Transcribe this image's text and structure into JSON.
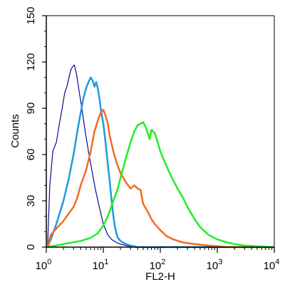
{
  "chart_data": {
    "type": "line",
    "title": "",
    "xlabel": "FL2-H",
    "ylabel": "Counts",
    "xscale": "log",
    "xlim": [
      1,
      10000
    ],
    "ylim": [
      0,
      150
    ],
    "grid": false,
    "legend": "none",
    "x_ticks": [
      {
        "base": "10",
        "exp": "0"
      },
      {
        "base": "10",
        "exp": "1"
      },
      {
        "base": "10",
        "exp": "2"
      },
      {
        "base": "10",
        "exp": "3"
      },
      {
        "base": "10",
        "exp": "4"
      }
    ],
    "y_ticks": [
      "0",
      "30",
      "60",
      "90",
      "120",
      "150"
    ],
    "series": [
      {
        "color": "#0a0a8c",
        "stroke_width": 1.2,
        "x": [
          1.05,
          1.15,
          1.3,
          1.5,
          1.7,
          1.9,
          2.1,
          2.3,
          2.5,
          2.7,
          2.9,
          3.1,
          3.4,
          3.8,
          4.2,
          4.8,
          5.5,
          6.3,
          7.2,
          8.5,
          10,
          12,
          14,
          17,
          20,
          25,
          35,
          60,
          150,
          1000,
          10000
        ],
        "y": [
          0,
          40,
          62,
          68,
          80,
          90,
          100,
          104,
          110,
          115,
          117,
          118,
          112,
          100,
          90,
          75,
          62,
          50,
          38,
          26,
          15,
          8,
          5,
          3,
          2,
          1,
          0,
          0,
          0,
          0,
          0
        ]
      },
      {
        "color": "#1e9be0",
        "stroke_width": 2.5,
        "x": [
          1.05,
          1.2,
          1.5,
          2,
          2.5,
          3,
          3.5,
          4,
          4.5,
          5,
          5.5,
          6,
          6.5,
          7,
          7.5,
          8,
          8.5,
          9,
          10,
          11,
          12,
          13,
          14,
          15,
          16,
          17,
          18,
          20,
          22,
          25,
          30,
          40,
          60,
          100,
          1000,
          10000
        ],
        "y": [
          0,
          5,
          15,
          30,
          45,
          60,
          75,
          87,
          97,
          103,
          107,
          110,
          108,
          104,
          107,
          103,
          97,
          90,
          80,
          67,
          54,
          42,
          30,
          20,
          13,
          9,
          6,
          4,
          3,
          2,
          1,
          0,
          0,
          0,
          0,
          0
        ]
      },
      {
        "color": "#f26b21",
        "stroke_width": 2.5,
        "x": [
          1.05,
          1.2,
          1.5,
          2,
          2.5,
          3,
          3.5,
          4,
          5,
          6,
          7,
          8,
          9,
          10,
          11,
          12,
          13,
          15,
          17,
          20,
          25,
          30,
          35,
          40,
          45,
          50,
          60,
          70,
          80,
          100,
          130,
          170,
          250,
          400,
          700,
          1500,
          10000
        ],
        "y": [
          0,
          8,
          12,
          17,
          22,
          26,
          32,
          40,
          50,
          62,
          75,
          82,
          87,
          89,
          85,
          80,
          72,
          62,
          55,
          48,
          42,
          38,
          40,
          38,
          37,
          28,
          23,
          18,
          15,
          11,
          7,
          5,
          3,
          2,
          1,
          0,
          0
        ]
      },
      {
        "color": "#22ee22",
        "stroke_width": 2.5,
        "x": [
          1.05,
          2,
          4,
          6,
          8,
          10,
          12,
          15,
          18,
          20,
          23,
          26,
          30,
          35,
          40,
          45,
          50,
          55,
          60,
          65,
          70,
          80,
          90,
          100,
          120,
          150,
          200,
          250,
          300,
          400,
          500,
          700,
          1000,
          1500,
          2000,
          3000,
          5000,
          10000
        ],
        "y": [
          0,
          2,
          4,
          6,
          9,
          14,
          20,
          30,
          38,
          45,
          53,
          60,
          68,
          75,
          79,
          80,
          81,
          78,
          74,
          70,
          76,
          74,
          68,
          62,
          55,
          47,
          38,
          32,
          26,
          18,
          13,
          8,
          5,
          3,
          2,
          1,
          0.5,
          0
        ]
      }
    ]
  }
}
